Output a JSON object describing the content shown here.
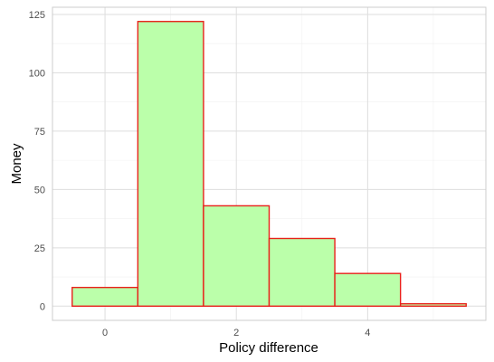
{
  "chart_data": {
    "type": "bar",
    "subtype": "histogram",
    "title": "",
    "xlabel": "Policy difference",
    "ylabel": "Money",
    "bins": [
      {
        "center": 0,
        "count": 8
      },
      {
        "center": 1,
        "count": 122
      },
      {
        "center": 2,
        "count": 43
      },
      {
        "center": 3,
        "count": 29
      },
      {
        "center": 4,
        "count": 14
      },
      {
        "center": 5,
        "count": 1
      }
    ],
    "bin_width": 1,
    "xlim": [
      -0.8,
      5.8
    ],
    "ylim": [
      -6.1,
      128.1
    ],
    "x_ticks": [
      0,
      2,
      4
    ],
    "x_minor_ticks": [
      1,
      3,
      5
    ],
    "y_ticks": [
      0,
      25,
      50,
      75,
      100,
      125
    ],
    "grid": true,
    "colors": {
      "bar_fill": "#BBFFAA",
      "bar_stroke": "#E8211A",
      "grid_major": "#DEDEDE",
      "grid_minor": "#F0F0F0",
      "panel_border": "#CCCCCC"
    }
  }
}
